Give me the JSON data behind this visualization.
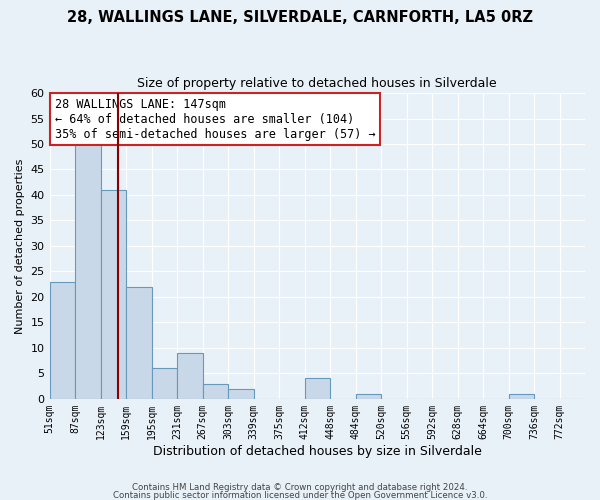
{
  "title": "28, WALLINGS LANE, SILVERDALE, CARNFORTH, LA5 0RZ",
  "subtitle": "Size of property relative to detached houses in Silverdale",
  "xlabel": "Distribution of detached houses by size in Silverdale",
  "ylabel": "Number of detached properties",
  "footer_line1": "Contains HM Land Registry data © Crown copyright and database right 2024.",
  "footer_line2": "Contains public sector information licensed under the Open Government Licence v3.0.",
  "bin_labels": [
    "51sqm",
    "87sqm",
    "123sqm",
    "159sqm",
    "195sqm",
    "231sqm",
    "267sqm",
    "303sqm",
    "339sqm",
    "375sqm",
    "412sqm",
    "448sqm",
    "484sqm",
    "520sqm",
    "556sqm",
    "592sqm",
    "628sqm",
    "664sqm",
    "700sqm",
    "736sqm",
    "772sqm"
  ],
  "bar_values": [
    23,
    50,
    41,
    22,
    6,
    9,
    3,
    2,
    0,
    0,
    4,
    0,
    1,
    0,
    0,
    0,
    0,
    0,
    1,
    0,
    0
  ],
  "bar_color": "#c8d8e8",
  "bar_edge_color": "#6699bb",
  "vline_color": "#880000",
  "vline_bin_index": 2.75,
  "annotation_title": "28 WALLINGS LANE: 147sqm",
  "annotation_line1": "← 64% of detached houses are smaller (104)",
  "annotation_line2": "35% of semi-detached houses are larger (57) →",
  "annotation_box_color": "#ffffff",
  "annotation_box_edge": "#cc2222",
  "ylim": [
    0,
    60
  ],
  "yticks": [
    0,
    5,
    10,
    15,
    20,
    25,
    30,
    35,
    40,
    45,
    50,
    55,
    60
  ],
  "background_color": "#e8f0f8",
  "plot_background": "#e8f0f8",
  "title_fontsize": 10.5,
  "subtitle_fontsize": 9
}
